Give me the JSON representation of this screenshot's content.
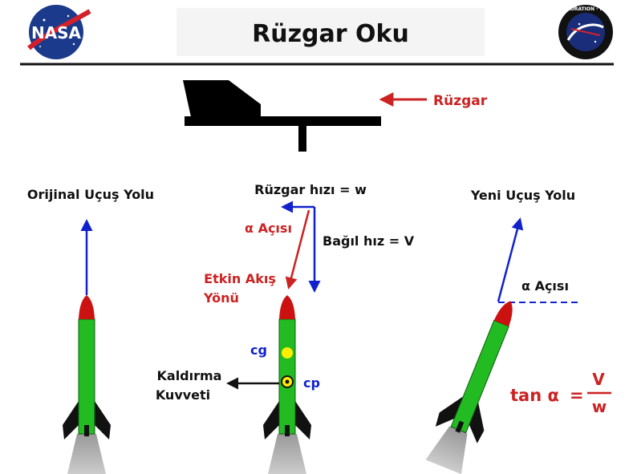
{
  "header": {
    "title": "Rüzgar Oku",
    "left_logo_text": "NASA",
    "right_logo_text": "EXPLORATION · NASA"
  },
  "wind": {
    "label": "Rüzgar",
    "color": "#cc2222"
  },
  "left": {
    "label": "Orijinal Uçuş Yolu"
  },
  "middle": {
    "wind_speed_label": "Rüzgar hızı = w",
    "relative_speed_label": "Bağıl hız = V",
    "angle_label": "α Açısı",
    "effective_flow_label_line1": "Etkin Akış",
    "effective_flow_label_line2": "Yönü",
    "cg_label": "cg",
    "cp_label": "cp",
    "lift_label_line1": "Kaldırma",
    "lift_label_line2": "Kuvveti"
  },
  "right": {
    "label": "Yeni Uçuş Yolu",
    "angle_label": "α Açısı",
    "formula_lhs": "tan α",
    "formula_eq": "=",
    "formula_num": "V",
    "formula_den": "w"
  },
  "colors": {
    "rocket_body": "#22bb22",
    "nose": "#cc1111",
    "fins": "#111111",
    "blue": "#1122cc",
    "red": "#cc2222",
    "cg_dot": "#ffee00"
  }
}
